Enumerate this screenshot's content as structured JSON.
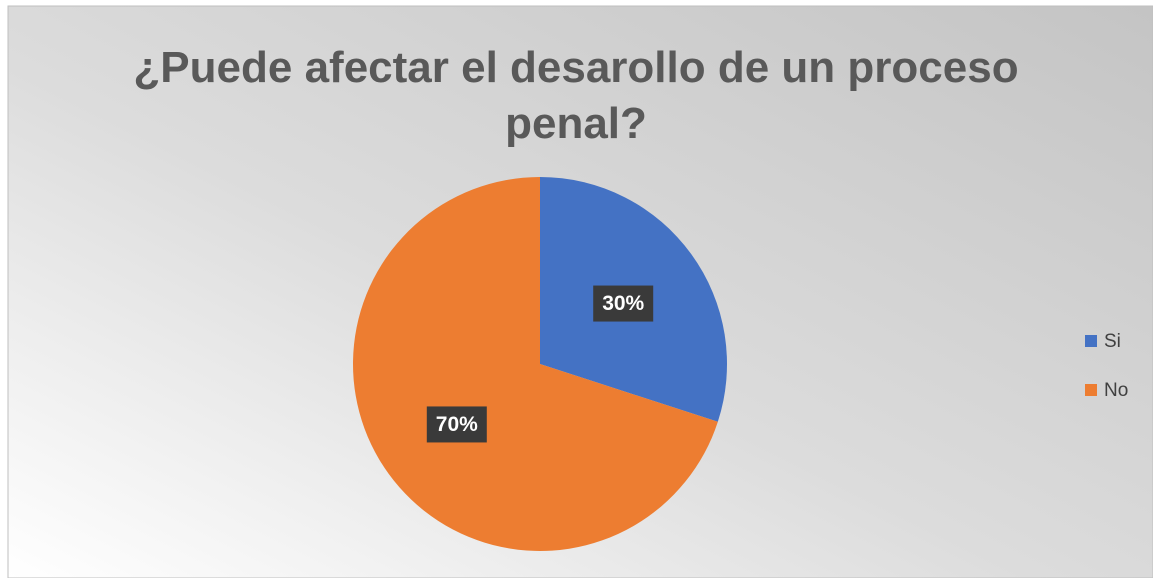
{
  "chart_data": {
    "type": "pie",
    "title": "¿Puede afectar el desarollo de un proceso penal?",
    "categories": [
      "Si",
      "No"
    ],
    "values": [
      30,
      70
    ],
    "value_labels": [
      "30%",
      "70%"
    ],
    "colors": [
      "#4472c4",
      "#ed7d31"
    ],
    "legend": "right"
  }
}
